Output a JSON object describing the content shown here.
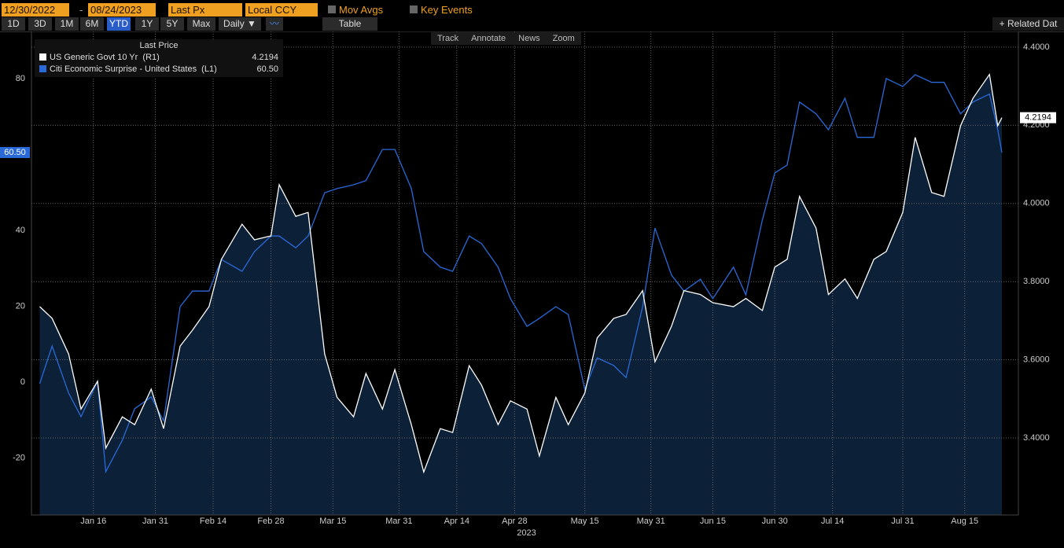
{
  "toolbar": {
    "start_date": "12/30/2022",
    "end_date": "08/24/2023",
    "field": "Last Px",
    "currency": "Local CCY",
    "mov_avgs": "Mov Avgs",
    "key_events": "Key Events",
    "ranges": [
      "1D",
      "3D",
      "1M",
      "6M",
      "YTD",
      "1Y",
      "5Y",
      "Max"
    ],
    "active_range": "YTD",
    "period": "Daily ▼",
    "table": "Table",
    "related": "+ Related Dat",
    "tools": [
      "Track",
      "Annotate",
      "News",
      "Zoom"
    ]
  },
  "chart_data": {
    "type": "line",
    "legend_title": "Last Price",
    "x_axis_label": "2023",
    "xlim": [
      "2023-01-01",
      "2023-08-28"
    ],
    "xticks": [
      {
        "value": "2023-01-16",
        "label": "Jan 16"
      },
      {
        "value": "2023-01-31",
        "label": "Jan 31"
      },
      {
        "value": "2023-02-14",
        "label": "Feb 14"
      },
      {
        "value": "2023-02-28",
        "label": "Feb 28"
      },
      {
        "value": "2023-03-15",
        "label": "Mar 15"
      },
      {
        "value": "2023-03-31",
        "label": "Mar 31"
      },
      {
        "value": "2023-04-14",
        "label": "Apr 14"
      },
      {
        "value": "2023-04-28",
        "label": "Apr 28"
      },
      {
        "value": "2023-05-15",
        "label": "May 15"
      },
      {
        "value": "2023-05-31",
        "label": "May 31"
      },
      {
        "value": "2023-06-15",
        "label": "Jun 15"
      },
      {
        "value": "2023-06-30",
        "label": "Jun 30"
      },
      {
        "value": "2023-07-14",
        "label": "Jul 14"
      },
      {
        "value": "2023-07-31",
        "label": "Jul 31"
      },
      {
        "value": "2023-08-15",
        "label": "Aug 15"
      }
    ],
    "ylim": [
      -35,
      92.4
    ],
    "yticks": [
      -20,
      0,
      20,
      40,
      80
    ],
    "y2lim": [
      3.203,
      4.44
    ],
    "y2ticks": [
      {
        "value": 3.4,
        "label": "3.4000"
      },
      {
        "value": 3.6,
        "label": "3.6000"
      },
      {
        "value": 3.8,
        "label": "3.8000"
      },
      {
        "value": 4.0,
        "label": "4.0000"
      },
      {
        "value": 4.2,
        "label": "4.2000"
      },
      {
        "value": 4.4,
        "label": "4.4000"
      }
    ],
    "grid": true,
    "x": [
      "2023-01-03",
      "2023-01-06",
      "2023-01-10",
      "2023-01-13",
      "2023-01-17",
      "2023-01-19",
      "2023-01-23",
      "2023-01-26",
      "2023-01-30",
      "2023-02-02",
      "2023-02-06",
      "2023-02-09",
      "2023-02-13",
      "2023-02-16",
      "2023-02-21",
      "2023-02-24",
      "2023-02-28",
      "2023-03-02",
      "2023-03-06",
      "2023-03-09",
      "2023-03-13",
      "2023-03-16",
      "2023-03-20",
      "2023-03-23",
      "2023-03-27",
      "2023-03-30",
      "2023-04-03",
      "2023-04-06",
      "2023-04-10",
      "2023-04-13",
      "2023-04-17",
      "2023-04-20",
      "2023-04-24",
      "2023-04-27",
      "2023-05-01",
      "2023-05-04",
      "2023-05-08",
      "2023-05-11",
      "2023-05-15",
      "2023-05-18",
      "2023-05-22",
      "2023-05-25",
      "2023-05-29",
      "2023-06-01",
      "2023-06-05",
      "2023-06-08",
      "2023-06-12",
      "2023-06-15",
      "2023-06-20",
      "2023-06-23",
      "2023-06-27",
      "2023-06-30",
      "2023-07-03",
      "2023-07-06",
      "2023-07-10",
      "2023-07-13",
      "2023-07-17",
      "2023-07-20",
      "2023-07-24",
      "2023-07-27",
      "2023-07-31",
      "2023-08-03",
      "2023-08-07",
      "2023-08-10",
      "2023-08-14",
      "2023-08-17",
      "2023-08-21",
      "2023-08-23",
      "2023-08-24"
    ],
    "series": [
      {
        "name": "US Generic Govt 10 Yr  (R1)",
        "color": "#ffffff",
        "fill": "#0c2038",
        "axis": "y2",
        "last_value_label": "4.2194",
        "values": [
          3.736,
          3.706,
          3.615,
          3.474,
          3.545,
          3.374,
          3.454,
          3.434,
          3.525,
          3.424,
          3.635,
          3.676,
          3.736,
          3.857,
          3.947,
          3.907,
          3.917,
          4.048,
          3.967,
          3.977,
          3.615,
          3.504,
          3.454,
          3.565,
          3.474,
          3.575,
          3.434,
          3.313,
          3.424,
          3.414,
          3.585,
          3.535,
          3.434,
          3.495,
          3.474,
          3.354,
          3.504,
          3.434,
          3.515,
          3.656,
          3.706,
          3.716,
          3.777,
          3.595,
          3.686,
          3.777,
          3.767,
          3.746,
          3.736,
          3.757,
          3.726,
          3.837,
          3.857,
          4.018,
          3.937,
          3.767,
          3.807,
          3.757,
          3.857,
          3.877,
          3.977,
          4.169,
          4.028,
          4.018,
          4.199,
          4.269,
          4.33,
          4.199,
          4.2194
        ]
      },
      {
        "name": "Citi Economic Surprise - United States  (L1)",
        "color": "#2a6ad8",
        "last_value_label": "60.50",
        "values": [
          -0.4,
          9.5,
          -2.9,
          -9.1,
          0.2,
          -23.6,
          -15.3,
          -7.0,
          -3.9,
          -10.2,
          19.9,
          24.0,
          24.0,
          32.3,
          29.2,
          34.4,
          38.5,
          38.5,
          35.4,
          38.5,
          49.9,
          51.0,
          52.0,
          53.1,
          61.3,
          61.3,
          51.0,
          34.4,
          30.3,
          29.2,
          38.5,
          36.5,
          30.3,
          22.0,
          14.7,
          16.8,
          19.9,
          17.8,
          -1.9,
          6.4,
          4.4,
          1.2,
          19.9,
          40.6,
          28.2,
          24.0,
          27.1,
          22.0,
          30.3,
          23.0,
          42.7,
          55.1,
          57.2,
          73.8,
          70.7,
          66.5,
          74.8,
          64.5,
          64.5,
          80.0,
          77.9,
          81.0,
          79.0,
          79.0,
          70.7,
          73.8,
          75.9,
          66.5,
          60.5
        ]
      }
    ]
  }
}
